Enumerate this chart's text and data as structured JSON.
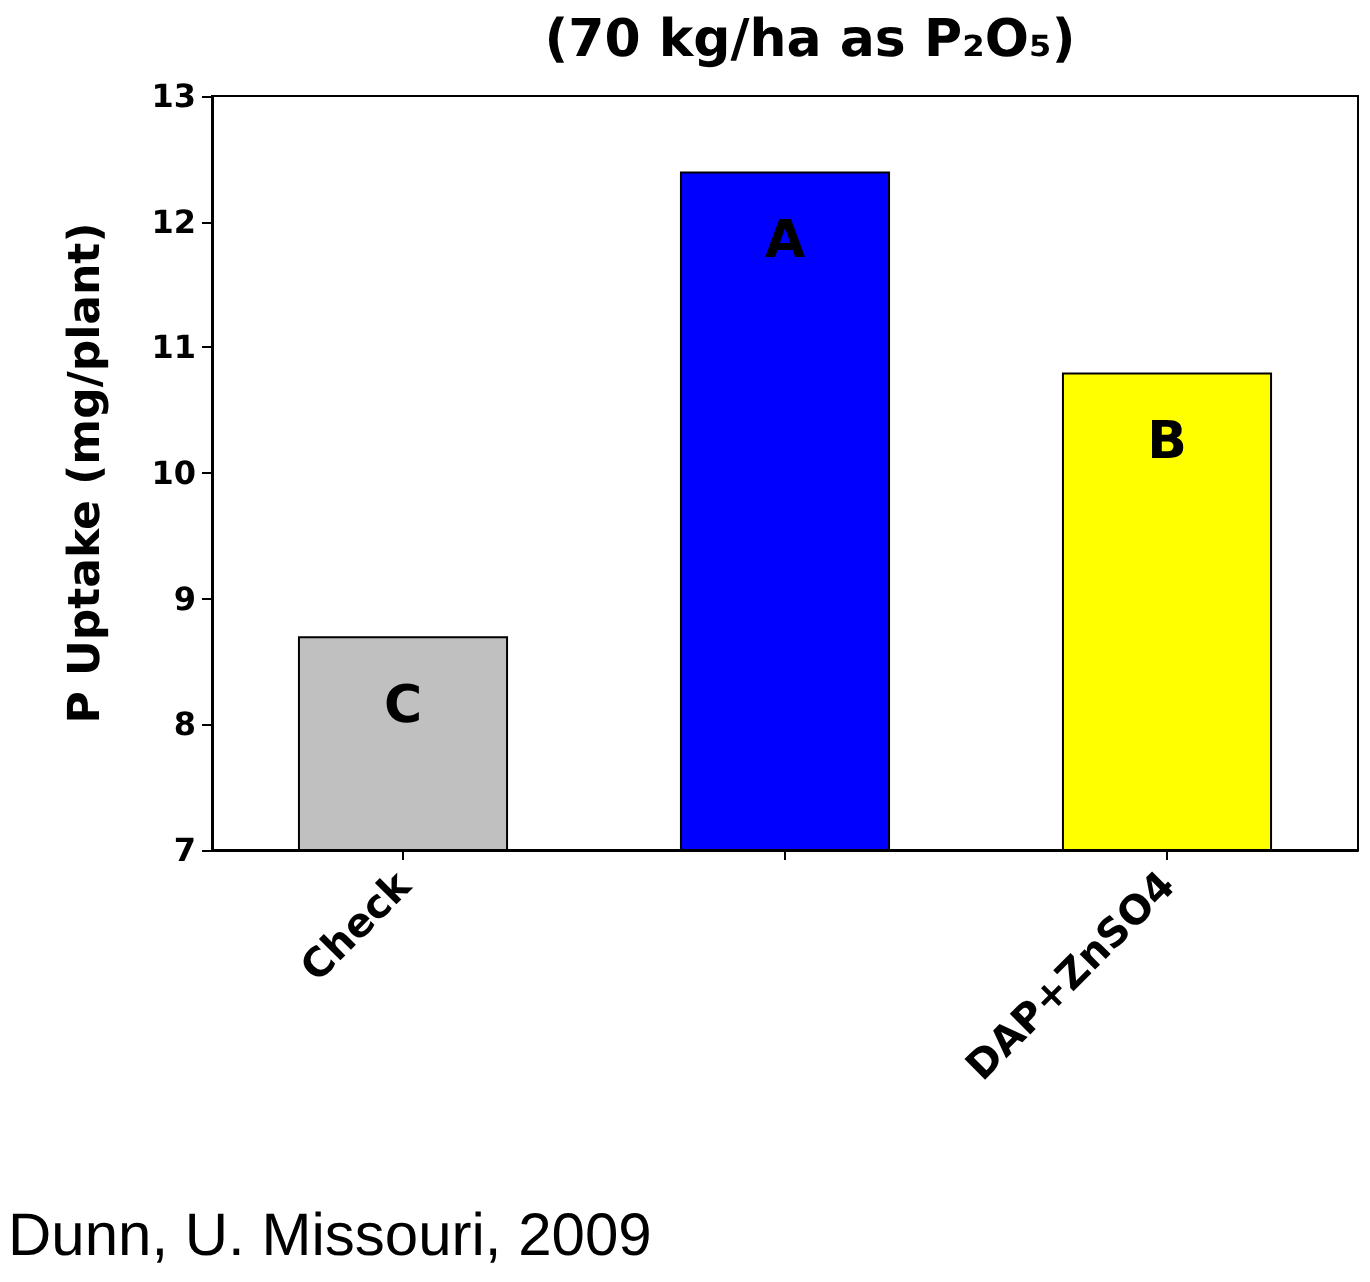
{
  "chart_data": {
    "type": "bar",
    "title": "(70 kg/ha as P₂O₅)",
    "ylabel": "P Uptake (mg/plant)",
    "categories": [
      "Check",
      null,
      "DAP+ZnSO4"
    ],
    "values": [
      8.7,
      12.4,
      10.8
    ],
    "colors": [
      "#c0c0c0",
      "#0000ff",
      "#ffff00"
    ],
    "value_labels": [
      "C",
      "A",
      "B"
    ],
    "ylim": [
      7,
      13
    ],
    "yticks": [
      7,
      8,
      9,
      10,
      11,
      12,
      13
    ],
    "annotations": [
      "Dunn, U. Missouri, 2009"
    ]
  }
}
